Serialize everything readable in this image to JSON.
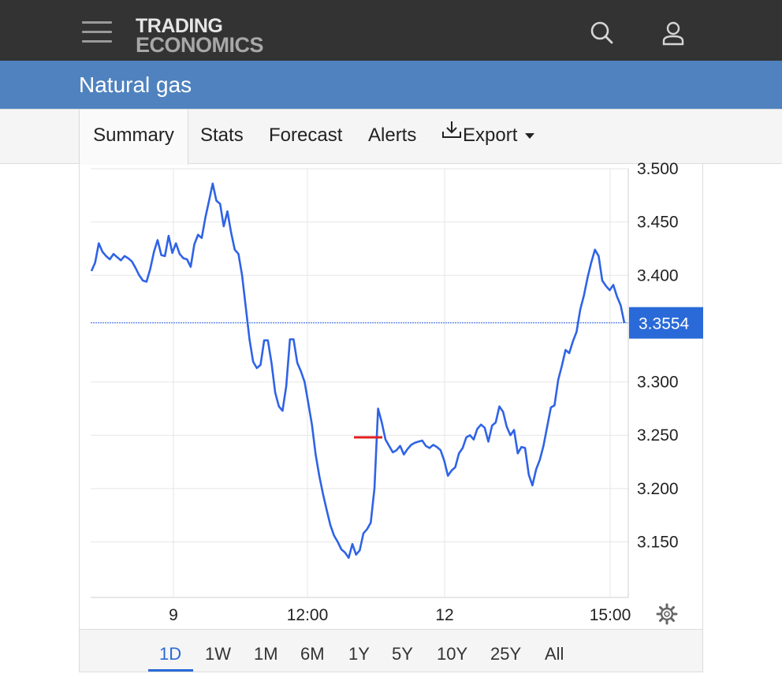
{
  "app": {
    "logo_line1": "TRADING",
    "logo_line2": "ECONOMICS",
    "page_title": "Natural gas"
  },
  "tabs": [
    {
      "label": "Summary",
      "active": true
    },
    {
      "label": "Stats"
    },
    {
      "label": "Forecast"
    },
    {
      "label": "Alerts"
    },
    {
      "label": "Export",
      "icon": "download-icon",
      "dropdown": true
    }
  ],
  "ranges": [
    "1D",
    "1W",
    "1M",
    "6M",
    "1Y",
    "5Y",
    "10Y",
    "25Y",
    "All"
  ],
  "active_range": "1D",
  "colors": {
    "accent": "#2a6ad8",
    "line": "#2f63e6",
    "title_bar": "#4f82bf",
    "top_bar": "#333333",
    "marker": "#e02020"
  },
  "chart_data": {
    "type": "line",
    "x_tick_labels": [
      "9",
      "12:00",
      "12",
      "15:00"
    ],
    "y_tick_labels": [
      "3.500",
      "3.450",
      "3.400",
      "3.300",
      "3.250",
      "3.200",
      "3.150"
    ],
    "ylim": [
      3.1,
      3.5
    ],
    "grid": true,
    "current_value": "3.3554",
    "reference_value": 3.248,
    "series": [
      {
        "values": [
          3.404,
          3.412,
          3.43,
          3.422,
          3.418,
          3.415,
          3.42,
          3.417,
          3.414,
          3.418,
          3.416,
          3.413,
          3.407,
          3.4,
          3.395,
          3.394,
          3.406,
          3.422,
          3.433,
          3.419,
          3.418,
          3.437,
          3.421,
          3.43,
          3.42,
          3.416,
          3.415,
          3.408,
          3.429,
          3.438,
          3.435,
          3.454,
          3.47,
          3.486,
          3.47,
          3.467,
          3.446,
          3.46,
          3.44,
          3.424,
          3.42,
          3.4,
          3.37,
          3.34,
          3.319,
          3.313,
          3.316,
          3.339,
          3.339,
          3.318,
          3.29,
          3.277,
          3.273,
          3.296,
          3.34,
          3.34,
          3.318,
          3.31,
          3.3,
          3.28,
          3.26,
          3.232,
          3.212,
          3.195,
          3.18,
          3.166,
          3.156,
          3.15,
          3.143,
          3.14,
          3.135,
          3.148,
          3.138,
          3.142,
          3.158,
          3.162,
          3.168,
          3.2,
          3.275,
          3.262,
          3.246,
          3.24,
          3.234,
          3.236,
          3.24,
          3.232,
          3.237,
          3.241,
          3.243,
          3.244,
          3.245,
          3.24,
          3.238,
          3.241,
          3.239,
          3.236,
          3.226,
          3.212,
          3.217,
          3.22,
          3.233,
          3.238,
          3.248,
          3.25,
          3.246,
          3.256,
          3.26,
          3.257,
          3.244,
          3.259,
          3.262,
          3.277,
          3.272,
          3.258,
          3.25,
          3.255,
          3.233,
          3.239,
          3.238,
          3.213,
          3.203,
          3.218,
          3.227,
          3.24,
          3.258,
          3.276,
          3.278,
          3.302,
          3.315,
          3.33,
          3.327,
          3.338,
          3.347,
          3.368,
          3.381,
          3.398,
          3.412,
          3.424,
          3.418,
          3.395,
          3.39,
          3.386,
          3.391,
          3.38,
          3.372,
          3.3554
        ]
      }
    ]
  }
}
